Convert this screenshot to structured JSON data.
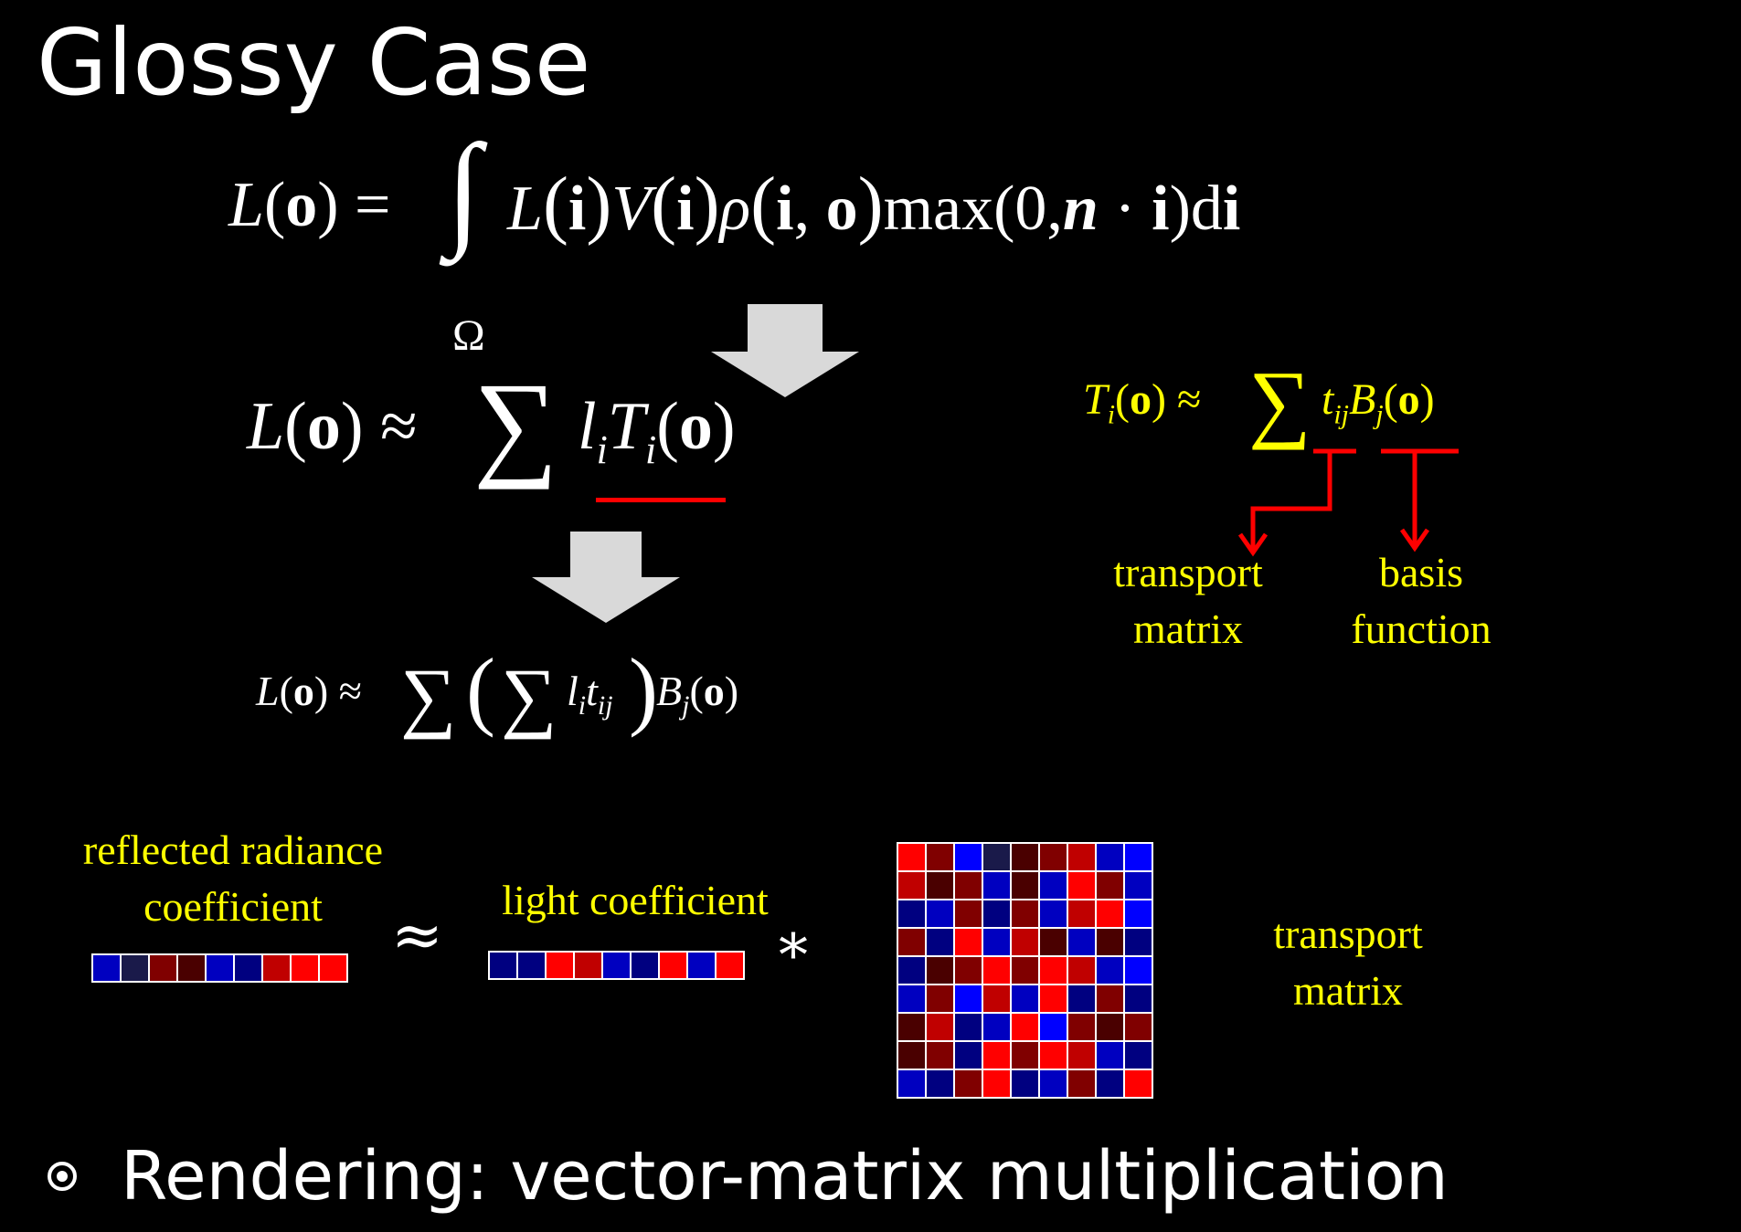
{
  "slide": {
    "title": "Glossy Case",
    "equations": {
      "integral": {
        "lhs": "L(o) =",
        "integrand": "L(i)V(i)ρ(i, o)max(0,n · i)di",
        "domain": "Ω"
      },
      "approx_sum": "L(o) ≈ ∑ l_i T_i(o)",
      "expanded": "L(o) ≈ ∑ ( ∑ l_i t_ij ) B_j(o)",
      "transport_expansion": "T_i(o) ≈ ∑ t_ij B_j(o)"
    },
    "annotations": {
      "transport_matrix": "transport matrix",
      "basis_function": "basis function"
    },
    "diagram": {
      "reflected_label_line1": "reflected radiance",
      "reflected_label_line2": "coefficient",
      "approx_symbol": "≈",
      "light_label": "light coefficient",
      "multiply_symbol": "*",
      "matrix_label_line1": "transport",
      "matrix_label_line2": "matrix"
    },
    "bullet": "Rendering: vector-matrix multiplication",
    "colors": {
      "background": "#000000",
      "text": "#ffffff",
      "highlight": "#ffff00",
      "accent_red": "#ff0000",
      "arrow_gray": "#d9d9d9"
    },
    "cell_palette": [
      "#ff0000",
      "#c00000",
      "#800000",
      "#4a0000",
      "#000080",
      "#0000c0",
      "#0000ff",
      "#1a1a4a"
    ],
    "vector_reflected": [
      5,
      7,
      2,
      3,
      5,
      4,
      1,
      0,
      0
    ],
    "vector_light": [
      4,
      4,
      0,
      1,
      5,
      4,
      0,
      5,
      0
    ],
    "matrix": [
      [
        0,
        2,
        6,
        7,
        3,
        2,
        1,
        5,
        6
      ],
      [
        1,
        3,
        2,
        5,
        3,
        5,
        0,
        2,
        5
      ],
      [
        4,
        5,
        2,
        4,
        2,
        5,
        1,
        0,
        6
      ],
      [
        2,
        4,
        0,
        5,
        1,
        3,
        5,
        3,
        4
      ],
      [
        4,
        3,
        2,
        0,
        2,
        0,
        1,
        5,
        6
      ],
      [
        5,
        2,
        6,
        1,
        5,
        0,
        4,
        2,
        4
      ],
      [
        3,
        1,
        4,
        5,
        0,
        6,
        2,
        3,
        2
      ],
      [
        3,
        2,
        4,
        0,
        2,
        0,
        1,
        5,
        4
      ],
      [
        5,
        4,
        2,
        0,
        4,
        5,
        2,
        4,
        0
      ]
    ]
  }
}
